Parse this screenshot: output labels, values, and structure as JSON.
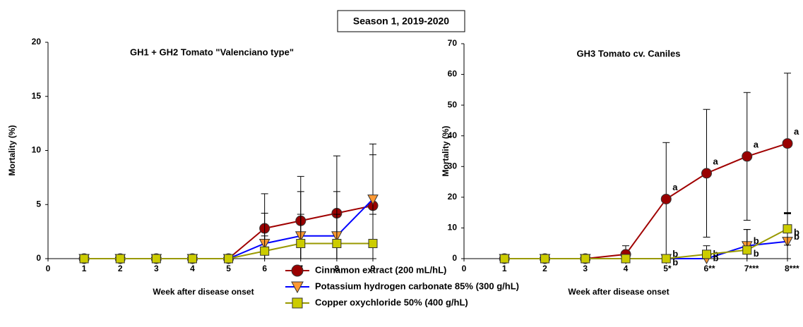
{
  "title": "Season 1, 2019-2020",
  "chart_data": [
    {
      "type": "line",
      "title": "GH1 + GH2 Tomato \"Valenciano type\"",
      "x_label": "Week after disease onset",
      "y_label": "Mortality (%)",
      "x": [
        1,
        2,
        3,
        4,
        5,
        6,
        7,
        8,
        9
      ],
      "xlim": [
        0,
        9
      ],
      "xticks": [
        0,
        1,
        2,
        3,
        4,
        5,
        6,
        7,
        8,
        9
      ],
      "ylim": [
        0,
        20
      ],
      "yticks": [
        0,
        5,
        10,
        15,
        20
      ],
      "series": [
        {
          "name": "Cinnamon extract (200 mL/hL)",
          "color": "#a00000",
          "marker": "circle",
          "marker_color": "#990000",
          "values": [
            0,
            0,
            0,
            0,
            0,
            2.8,
            3.5,
            4.2,
            4.9
          ],
          "errors": [
            0,
            0,
            0,
            0,
            0,
            3.2,
            4.1,
            5.3,
            5.7
          ]
        },
        {
          "name": "Potassium hydrogen carbonate 85% (300 g/hL)",
          "color": "#0000ff",
          "marker": "triangle",
          "marker_color": "#ff9933",
          "values": [
            0,
            0,
            0,
            0,
            0,
            1.4,
            2.1,
            2.1,
            5.5
          ],
          "errors": [
            0,
            0,
            0,
            0,
            0,
            2.8,
            4.1,
            4.1,
            4.1
          ]
        },
        {
          "name": "Copper oxychloride 50% (400 g/hL)",
          "color": "#999900",
          "marker": "square",
          "marker_color": "#cccc00",
          "values": [
            0,
            0,
            0,
            0,
            0,
            0.7,
            1.4,
            1.4,
            1.4
          ],
          "errors": [
            0,
            0,
            0,
            0,
            0,
            1.4,
            2.7,
            2.7,
            2.7
          ]
        }
      ]
    },
    {
      "type": "line",
      "title": "GH3 Tomato cv. Caniles",
      "x_label": "Week after disease onset",
      "y_label": "Mortality (%)",
      "x": [
        1,
        2,
        3,
        4,
        5,
        6,
        7,
        8
      ],
      "xlim": [
        0,
        8
      ],
      "xticks": [
        0,
        1,
        2,
        3,
        4,
        {
          "value": 5,
          "label": "5*"
        },
        {
          "value": 6,
          "label": "6**"
        },
        {
          "value": 7,
          "label": "7***"
        },
        {
          "value": 8,
          "label": "8***"
        }
      ],
      "ylim": [
        0,
        70
      ],
      "yticks": [
        0,
        10,
        20,
        30,
        40,
        50,
        60,
        70
      ],
      "series": [
        {
          "color": "#a00000",
          "marker": "circle",
          "marker_color": "#990000",
          "values": [
            0,
            0,
            0,
            1.4,
            19.4,
            27.8,
            33.3,
            37.5
          ],
          "errors": [
            0,
            0,
            0,
            2.8,
            18.4,
            20.8,
            20.8,
            22.9
          ],
          "letters": [
            null,
            null,
            null,
            null,
            "a",
            "a",
            "a",
            "a"
          ]
        },
        {
          "color": "#0000ff",
          "marker": "triangle",
          "marker_color": "#ff9933",
          "values": [
            0,
            0,
            0,
            0,
            0,
            0,
            4.2,
            5.6
          ],
          "errors": [
            0,
            0,
            0,
            0,
            0,
            0,
            5.3,
            9.2
          ],
          "letters": [
            null,
            null,
            null,
            null,
            "b",
            "b",
            "b",
            "b"
          ]
        },
        {
          "color": "#999900",
          "marker": "square",
          "marker_color": "#cccc00",
          "values": [
            0,
            0,
            0,
            0,
            0,
            1.4,
            2.8,
            9.7
          ],
          "errors": [
            0,
            0,
            0,
            0,
            0,
            2.8,
            6.7,
            5.3
          ],
          "letters": [
            null,
            null,
            null,
            null,
            "b",
            "b",
            "b",
            "b"
          ]
        }
      ]
    }
  ]
}
